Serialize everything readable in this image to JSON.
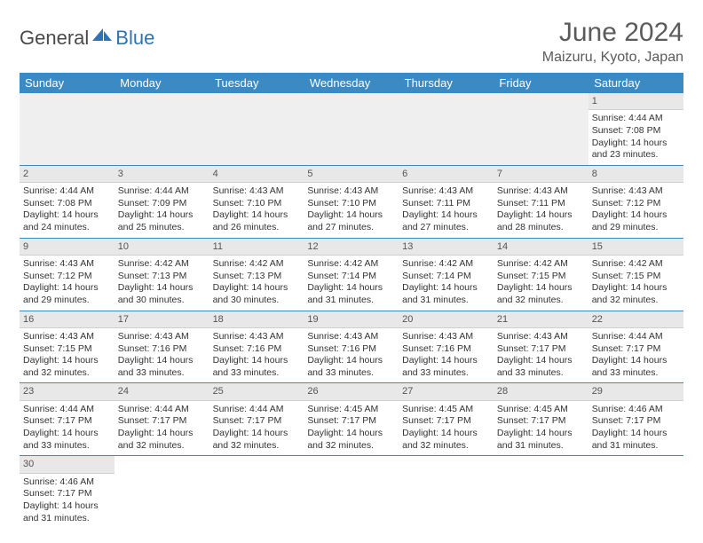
{
  "logo": {
    "text1": "General",
    "text2": "Blue"
  },
  "header": {
    "title": "June 2024",
    "location": "Maizuru, Kyoto, Japan"
  },
  "colors": {
    "header_bg": "#3b8ac4",
    "header_fg": "#ffffff",
    "daynum_bg": "#e8e8e8",
    "border": "#3b8ac4",
    "text": "#333333",
    "title": "#5b5b5b"
  },
  "typography": {
    "title_fontsize": 30,
    "location_fontsize": 16,
    "dayheader_fontsize": 13,
    "cell_fontsize": 10.5
  },
  "weekdays": [
    "Sunday",
    "Monday",
    "Tuesday",
    "Wednesday",
    "Thursday",
    "Friday",
    "Saturday"
  ],
  "weeks": [
    [
      null,
      null,
      null,
      null,
      null,
      null,
      {
        "n": "1",
        "sr": "Sunrise: 4:44 AM",
        "ss": "Sunset: 7:08 PM",
        "dl1": "Daylight: 14 hours",
        "dl2": "and 23 minutes."
      }
    ],
    [
      {
        "n": "2",
        "sr": "Sunrise: 4:44 AM",
        "ss": "Sunset: 7:08 PM",
        "dl1": "Daylight: 14 hours",
        "dl2": "and 24 minutes."
      },
      {
        "n": "3",
        "sr": "Sunrise: 4:44 AM",
        "ss": "Sunset: 7:09 PM",
        "dl1": "Daylight: 14 hours",
        "dl2": "and 25 minutes."
      },
      {
        "n": "4",
        "sr": "Sunrise: 4:43 AM",
        "ss": "Sunset: 7:10 PM",
        "dl1": "Daylight: 14 hours",
        "dl2": "and 26 minutes."
      },
      {
        "n": "5",
        "sr": "Sunrise: 4:43 AM",
        "ss": "Sunset: 7:10 PM",
        "dl1": "Daylight: 14 hours",
        "dl2": "and 27 minutes."
      },
      {
        "n": "6",
        "sr": "Sunrise: 4:43 AM",
        "ss": "Sunset: 7:11 PM",
        "dl1": "Daylight: 14 hours",
        "dl2": "and 27 minutes."
      },
      {
        "n": "7",
        "sr": "Sunrise: 4:43 AM",
        "ss": "Sunset: 7:11 PM",
        "dl1": "Daylight: 14 hours",
        "dl2": "and 28 minutes."
      },
      {
        "n": "8",
        "sr": "Sunrise: 4:43 AM",
        "ss": "Sunset: 7:12 PM",
        "dl1": "Daylight: 14 hours",
        "dl2": "and 29 minutes."
      }
    ],
    [
      {
        "n": "9",
        "sr": "Sunrise: 4:43 AM",
        "ss": "Sunset: 7:12 PM",
        "dl1": "Daylight: 14 hours",
        "dl2": "and 29 minutes."
      },
      {
        "n": "10",
        "sr": "Sunrise: 4:42 AM",
        "ss": "Sunset: 7:13 PM",
        "dl1": "Daylight: 14 hours",
        "dl2": "and 30 minutes."
      },
      {
        "n": "11",
        "sr": "Sunrise: 4:42 AM",
        "ss": "Sunset: 7:13 PM",
        "dl1": "Daylight: 14 hours",
        "dl2": "and 30 minutes."
      },
      {
        "n": "12",
        "sr": "Sunrise: 4:42 AM",
        "ss": "Sunset: 7:14 PM",
        "dl1": "Daylight: 14 hours",
        "dl2": "and 31 minutes."
      },
      {
        "n": "13",
        "sr": "Sunrise: 4:42 AM",
        "ss": "Sunset: 7:14 PM",
        "dl1": "Daylight: 14 hours",
        "dl2": "and 31 minutes."
      },
      {
        "n": "14",
        "sr": "Sunrise: 4:42 AM",
        "ss": "Sunset: 7:15 PM",
        "dl1": "Daylight: 14 hours",
        "dl2": "and 32 minutes."
      },
      {
        "n": "15",
        "sr": "Sunrise: 4:42 AM",
        "ss": "Sunset: 7:15 PM",
        "dl1": "Daylight: 14 hours",
        "dl2": "and 32 minutes."
      }
    ],
    [
      {
        "n": "16",
        "sr": "Sunrise: 4:43 AM",
        "ss": "Sunset: 7:15 PM",
        "dl1": "Daylight: 14 hours",
        "dl2": "and 32 minutes."
      },
      {
        "n": "17",
        "sr": "Sunrise: 4:43 AM",
        "ss": "Sunset: 7:16 PM",
        "dl1": "Daylight: 14 hours",
        "dl2": "and 33 minutes."
      },
      {
        "n": "18",
        "sr": "Sunrise: 4:43 AM",
        "ss": "Sunset: 7:16 PM",
        "dl1": "Daylight: 14 hours",
        "dl2": "and 33 minutes."
      },
      {
        "n": "19",
        "sr": "Sunrise: 4:43 AM",
        "ss": "Sunset: 7:16 PM",
        "dl1": "Daylight: 14 hours",
        "dl2": "and 33 minutes."
      },
      {
        "n": "20",
        "sr": "Sunrise: 4:43 AM",
        "ss": "Sunset: 7:16 PM",
        "dl1": "Daylight: 14 hours",
        "dl2": "and 33 minutes."
      },
      {
        "n": "21",
        "sr": "Sunrise: 4:43 AM",
        "ss": "Sunset: 7:17 PM",
        "dl1": "Daylight: 14 hours",
        "dl2": "and 33 minutes."
      },
      {
        "n": "22",
        "sr": "Sunrise: 4:44 AM",
        "ss": "Sunset: 7:17 PM",
        "dl1": "Daylight: 14 hours",
        "dl2": "and 33 minutes."
      }
    ],
    [
      {
        "n": "23",
        "sr": "Sunrise: 4:44 AM",
        "ss": "Sunset: 7:17 PM",
        "dl1": "Daylight: 14 hours",
        "dl2": "and 33 minutes."
      },
      {
        "n": "24",
        "sr": "Sunrise: 4:44 AM",
        "ss": "Sunset: 7:17 PM",
        "dl1": "Daylight: 14 hours",
        "dl2": "and 32 minutes."
      },
      {
        "n": "25",
        "sr": "Sunrise: 4:44 AM",
        "ss": "Sunset: 7:17 PM",
        "dl1": "Daylight: 14 hours",
        "dl2": "and 32 minutes."
      },
      {
        "n": "26",
        "sr": "Sunrise: 4:45 AM",
        "ss": "Sunset: 7:17 PM",
        "dl1": "Daylight: 14 hours",
        "dl2": "and 32 minutes."
      },
      {
        "n": "27",
        "sr": "Sunrise: 4:45 AM",
        "ss": "Sunset: 7:17 PM",
        "dl1": "Daylight: 14 hours",
        "dl2": "and 32 minutes."
      },
      {
        "n": "28",
        "sr": "Sunrise: 4:45 AM",
        "ss": "Sunset: 7:17 PM",
        "dl1": "Daylight: 14 hours",
        "dl2": "and 31 minutes."
      },
      {
        "n": "29",
        "sr": "Sunrise: 4:46 AM",
        "ss": "Sunset: 7:17 PM",
        "dl1": "Daylight: 14 hours",
        "dl2": "and 31 minutes."
      }
    ],
    [
      {
        "n": "30",
        "sr": "Sunrise: 4:46 AM",
        "ss": "Sunset: 7:17 PM",
        "dl1": "Daylight: 14 hours",
        "dl2": "and 31 minutes."
      },
      null,
      null,
      null,
      null,
      null,
      null
    ]
  ]
}
